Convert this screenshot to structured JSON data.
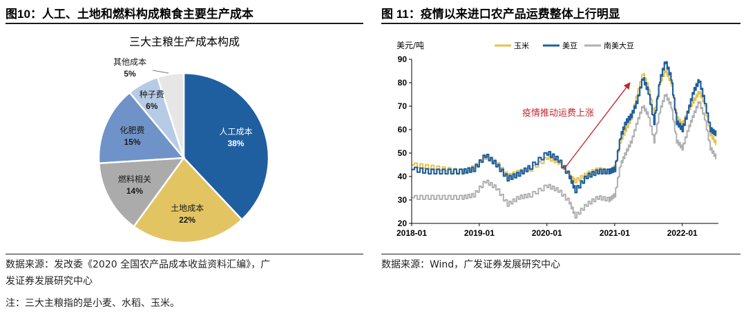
{
  "left_figure": {
    "label": "图10",
    "title": "：人工、土地和燃料构成粮食主要生产成本",
    "source_line1": "数据来源：发改委《2020 全国农产品成本收益资料汇编》，广",
    "source_line2": "发证券发展研究中心",
    "note": "注：三大主粮指的是小麦、水稻、玉米。"
  },
  "right_figure": {
    "label": "图 11",
    "title": "：疫情以来进口农产品运费整体上行明显",
    "source": "数据来源：Wind，广发证券发展研究中心"
  },
  "chart_data": [
    {
      "type": "pie",
      "title": "三大主粮生产成本构成",
      "slices": [
        {
          "label": "人工成本",
          "value": 38,
          "pct_label": "38%",
          "color": "#1f5fa0"
        },
        {
          "label": "土地成本",
          "value": 22,
          "pct_label": "22%",
          "color": "#e3c463"
        },
        {
          "label": "燃料相关",
          "value": 14,
          "pct_label": "14%",
          "color": "#ababab"
        },
        {
          "label": "化肥费",
          "value": 15,
          "pct_label": "15%",
          "color": "#6f93c8"
        },
        {
          "label": "种子费",
          "value": 6,
          "pct_label": "6%",
          "color": "#b7cae6"
        },
        {
          "label": "其他成本",
          "value": 5,
          "pct_label": "5%",
          "color": "#e6e6e6"
        }
      ]
    },
    {
      "type": "line",
      "ylabel": "美元/吨",
      "ylim": [
        20,
        90
      ],
      "yticks": [
        20,
        30,
        40,
        50,
        60,
        70,
        80,
        90
      ],
      "xlim": [
        "2018-01",
        "2022-07"
      ],
      "xticks": [
        "2018-01",
        "2019-01",
        "2020-01",
        "2021-01",
        "2022-01"
      ],
      "annotation": "疫情推动运费上涨",
      "legend_position": "top",
      "series": [
        {
          "name": "玉米",
          "color": "#e8c14e",
          "points": [
            [
              "2018-01",
              45
            ],
            [
              "2018-04",
              44
            ],
            [
              "2018-07",
              43
            ],
            [
              "2018-10",
              42
            ],
            [
              "2018-12",
              44
            ],
            [
              "2019-02",
              48
            ],
            [
              "2019-04",
              46
            ],
            [
              "2019-06",
              40
            ],
            [
              "2019-08",
              42
            ],
            [
              "2019-10",
              43
            ],
            [
              "2020-01",
              48
            ],
            [
              "2020-03",
              46
            ],
            [
              "2020-05",
              40
            ],
            [
              "2020-06",
              38
            ],
            [
              "2020-08",
              41
            ],
            [
              "2020-10",
              43
            ],
            [
              "2020-12",
              42
            ],
            [
              "2021-01",
              44
            ],
            [
              "2021-02",
              55
            ],
            [
              "2021-03",
              60
            ],
            [
              "2021-04",
              65
            ],
            [
              "2021-05",
              75
            ],
            [
              "2021-06",
              84
            ],
            [
              "2021-07",
              78
            ],
            [
              "2021-08",
              66
            ],
            [
              "2021-09",
              80
            ],
            [
              "2021-10",
              85
            ],
            [
              "2021-11",
              80
            ],
            [
              "2021-12",
              65
            ],
            [
              "2022-01",
              62
            ],
            [
              "2022-02",
              68
            ],
            [
              "2022-03",
              72
            ],
            [
              "2022-04",
              76
            ],
            [
              "2022-05",
              71
            ],
            [
              "2022-06",
              58
            ],
            [
              "2022-07",
              54
            ]
          ]
        },
        {
          "name": "美豆",
          "color": "#1f5fa0",
          "points": [
            [
              "2018-01",
              43
            ],
            [
              "2018-04",
              42
            ],
            [
              "2018-07",
              42
            ],
            [
              "2018-10",
              42
            ],
            [
              "2018-12",
              43
            ],
            [
              "2019-02",
              49
            ],
            [
              "2019-04",
              45
            ],
            [
              "2019-06",
              39
            ],
            [
              "2019-08",
              41
            ],
            [
              "2019-10",
              44
            ],
            [
              "2020-01",
              50
            ],
            [
              "2020-03",
              47
            ],
            [
              "2020-05",
              40
            ],
            [
              "2020-06",
              34
            ],
            [
              "2020-08",
              40
            ],
            [
              "2020-10",
              42
            ],
            [
              "2020-12",
              42
            ],
            [
              "2021-01",
              43
            ],
            [
              "2021-02",
              57
            ],
            [
              "2021-03",
              63
            ],
            [
              "2021-04",
              66
            ],
            [
              "2021-05",
              72
            ],
            [
              "2021-06",
              82
            ],
            [
              "2021-07",
              76
            ],
            [
              "2021-08",
              63
            ],
            [
              "2021-09",
              81
            ],
            [
              "2021-10",
              89
            ],
            [
              "2021-11",
              82
            ],
            [
              "2021-12",
              63
            ],
            [
              "2022-01",
              60
            ],
            [
              "2022-02",
              68
            ],
            [
              "2022-03",
              76
            ],
            [
              "2022-04",
              81
            ],
            [
              "2022-05",
              72
            ],
            [
              "2022-06",
              60
            ],
            [
              "2022-07",
              58
            ]
          ]
        },
        {
          "name": "南美大豆",
          "color": "#b0b0b0",
          "points": [
            [
              "2018-01",
              31
            ],
            [
              "2018-04",
              31
            ],
            [
              "2018-07",
              31
            ],
            [
              "2018-10",
              31
            ],
            [
              "2018-12",
              32
            ],
            [
              "2019-02",
              38
            ],
            [
              "2019-04",
              35
            ],
            [
              "2019-06",
              28
            ],
            [
              "2019-08",
              31
            ],
            [
              "2019-10",
              32
            ],
            [
              "2020-01",
              36
            ],
            [
              "2020-03",
              34
            ],
            [
              "2020-05",
              29
            ],
            [
              "2020-06",
              23
            ],
            [
              "2020-08",
              28
            ],
            [
              "2020-10",
              31
            ],
            [
              "2020-12",
              30
            ],
            [
              "2021-01",
              32
            ],
            [
              "2021-02",
              45
            ],
            [
              "2021-03",
              50
            ],
            [
              "2021-04",
              55
            ],
            [
              "2021-05",
              63
            ],
            [
              "2021-06",
              70
            ],
            [
              "2021-07",
              66
            ],
            [
              "2021-08",
              55
            ],
            [
              "2021-09",
              68
            ],
            [
              "2021-10",
              75
            ],
            [
              "2021-11",
              70
            ],
            [
              "2021-12",
              55
            ],
            [
              "2022-01",
              52
            ],
            [
              "2022-02",
              60
            ],
            [
              "2022-03",
              66
            ],
            [
              "2022-04",
              72
            ],
            [
              "2022-05",
              65
            ],
            [
              "2022-06",
              52
            ],
            [
              "2022-07",
              48
            ]
          ]
        }
      ]
    }
  ]
}
